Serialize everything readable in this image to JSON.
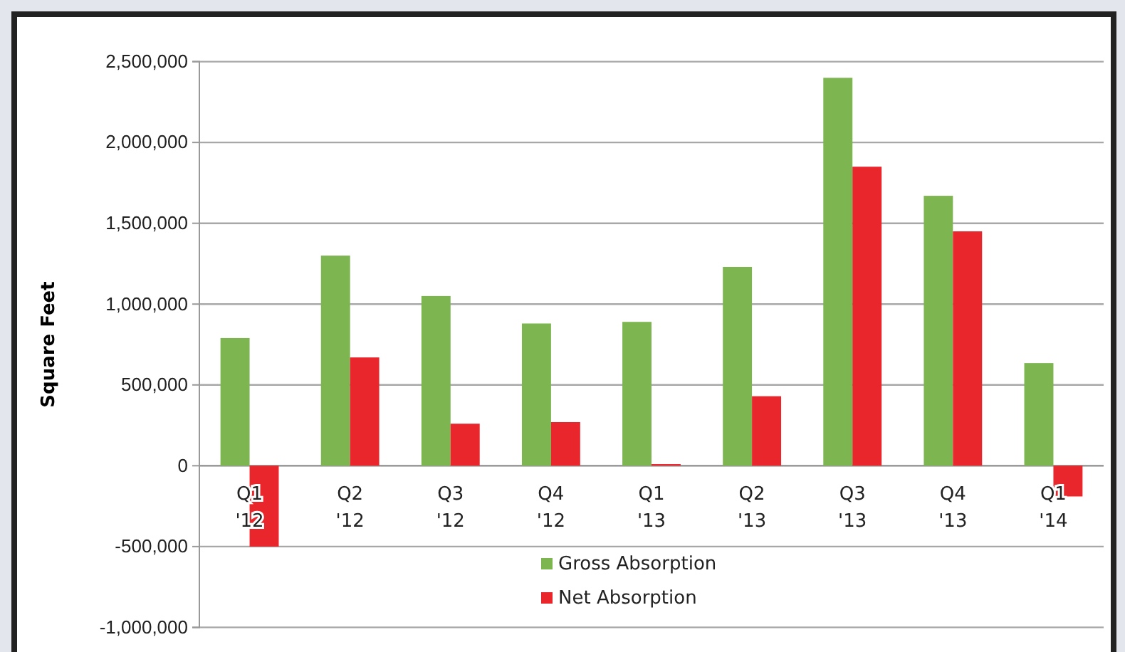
{
  "chart_data": {
    "type": "bar",
    "ylabel": "Square Feet",
    "categories": [
      "Q1 '12",
      "Q2 '12",
      "Q3 '12",
      "Q4 '12",
      "Q1 '13",
      "Q2 '13",
      "Q3 '13",
      "Q4 '13",
      "Q1 '14"
    ],
    "series": [
      {
        "name": "Gross Absorption",
        "color": "#7db651",
        "values": [
          790000,
          1300000,
          1050000,
          880000,
          890000,
          1230000,
          2400000,
          1670000,
          635000
        ]
      },
      {
        "name": "Net Absorption",
        "color": "#e8262c",
        "values": [
          -500000,
          670000,
          260000,
          270000,
          10000,
          430000,
          1850000,
          1450000,
          -190000
        ]
      }
    ],
    "ylim": [
      -1000000,
      2500000
    ],
    "yticks": [
      {
        "value": -1000000,
        "label": "-1,000,000"
      },
      {
        "value": -500000,
        "label": "-500,000"
      },
      0,
      {
        "value": 500000,
        "label": "500,000"
      },
      {
        "value": 1000000,
        "label": "1,000,000"
      },
      {
        "value": 1500000,
        "label": "1,500,000"
      },
      {
        "value": 2000000,
        "label": "2,000,000"
      },
      {
        "value": 2500000,
        "label": "2,500,000"
      }
    ],
    "grid": "y",
    "legend": "bottom"
  }
}
